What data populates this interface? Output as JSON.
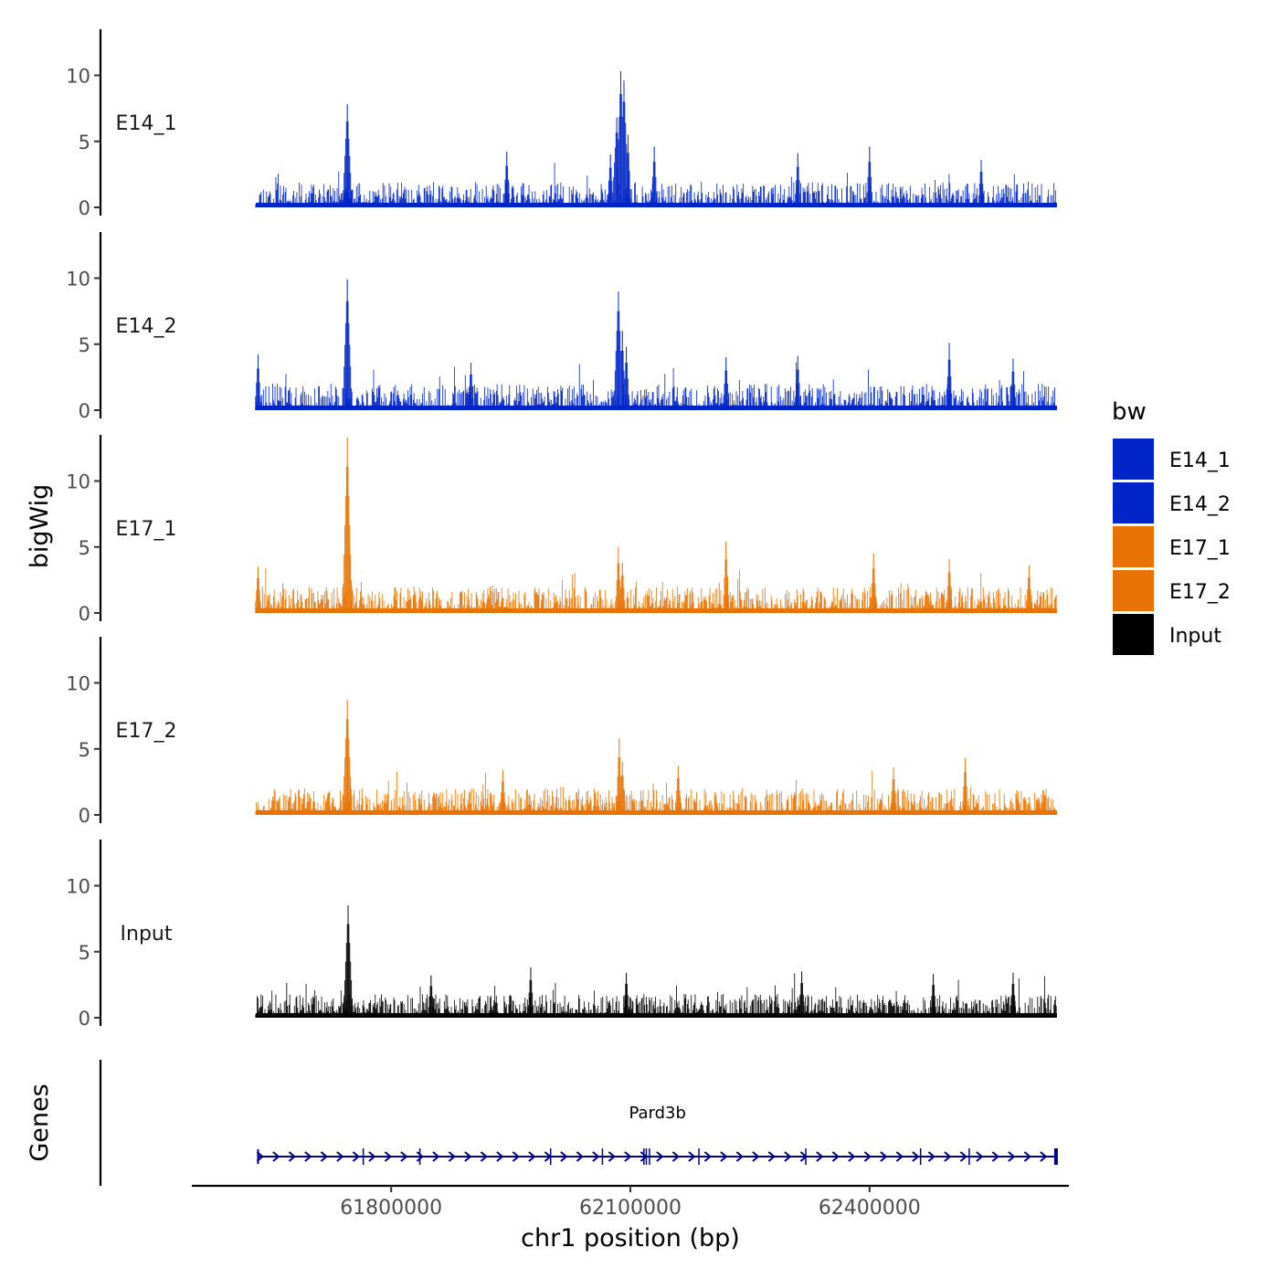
{
  "chart_data": {
    "type": "area",
    "title": "",
    "xlabel": "chr1 position (bp)",
    "ylabel": "bigWig",
    "genes_label": "Genes",
    "xlim": [
      61550000,
      62650000
    ],
    "x_data_range": [
      61630000,
      62635000
    ],
    "x_ticks": [
      61800000,
      62100000,
      62400000
    ],
    "x_tick_labels": [
      "61800000",
      "62100000",
      "62400000"
    ],
    "ylim": [
      0,
      14
    ],
    "y_ticks": [
      0,
      5,
      10
    ],
    "y_tick_labels": [
      "0",
      "5",
      "10"
    ],
    "legend": {
      "title": "bw",
      "position": "right",
      "entries": [
        {
          "label": "E14_1",
          "color": "#0024C8"
        },
        {
          "label": "E14_2",
          "color": "#0024C8"
        },
        {
          "label": "E17_1",
          "color": "#E87304"
        },
        {
          "label": "E17_2",
          "color": "#E87304"
        },
        {
          "label": "Input",
          "color": "#000000"
        }
      ]
    },
    "tracks": [
      {
        "name": "E14_1",
        "color": "#0024C8",
        "base_max": 1.9,
        "seed": 11,
        "peaks": [
          {
            "x": 61745000,
            "y": 7.8
          },
          {
            "x": 61945000,
            "y": 4.2
          },
          {
            "x": 62075000,
            "y": 4.0
          },
          {
            "x": 62083000,
            "y": 6.8
          },
          {
            "x": 62088000,
            "y": 10.3
          },
          {
            "x": 62092000,
            "y": 9.6
          },
          {
            "x": 62097000,
            "y": 5.5
          },
          {
            "x": 62130000,
            "y": 4.6
          },
          {
            "x": 62310000,
            "y": 4.1
          },
          {
            "x": 62400000,
            "y": 4.6
          },
          {
            "x": 62540000,
            "y": 3.6
          }
        ]
      },
      {
        "name": "E14_2",
        "color": "#0024C8",
        "base_max": 2.0,
        "seed": 23,
        "peaks": [
          {
            "x": 61633000,
            "y": 4.2
          },
          {
            "x": 61745000,
            "y": 9.9
          },
          {
            "x": 61900000,
            "y": 3.6
          },
          {
            "x": 62085000,
            "y": 9.0
          },
          {
            "x": 62090000,
            "y": 6.0
          },
          {
            "x": 62095000,
            "y": 4.8
          },
          {
            "x": 62220000,
            "y": 4.0
          },
          {
            "x": 62310000,
            "y": 4.1
          },
          {
            "x": 62500000,
            "y": 5.1
          },
          {
            "x": 62580000,
            "y": 3.9
          }
        ]
      },
      {
        "name": "E17_1",
        "color": "#E87304",
        "base_max": 2.0,
        "seed": 37,
        "peaks": [
          {
            "x": 61633000,
            "y": 3.5
          },
          {
            "x": 61745000,
            "y": 13.3
          },
          {
            "x": 61748000,
            "y": 5.0
          },
          {
            "x": 62085000,
            "y": 5.0
          },
          {
            "x": 62090000,
            "y": 3.8
          },
          {
            "x": 62220000,
            "y": 5.4
          },
          {
            "x": 62405000,
            "y": 4.5
          },
          {
            "x": 62500000,
            "y": 4.1
          },
          {
            "x": 62600000,
            "y": 3.6
          }
        ]
      },
      {
        "name": "E17_2",
        "color": "#E87304",
        "base_max": 2.0,
        "seed": 53,
        "peaks": [
          {
            "x": 61745000,
            "y": 8.7
          },
          {
            "x": 61745500,
            "y": 4.5
          },
          {
            "x": 61940000,
            "y": 3.4
          },
          {
            "x": 62086000,
            "y": 5.8
          },
          {
            "x": 62090000,
            "y": 4.0
          },
          {
            "x": 62160000,
            "y": 3.7
          },
          {
            "x": 62430000,
            "y": 3.6
          },
          {
            "x": 62520000,
            "y": 4.3
          }
        ]
      },
      {
        "name": "Input",
        "color": "#000000",
        "base_max": 1.8,
        "seed": 71,
        "peaks": [
          {
            "x": 61746000,
            "y": 8.5
          },
          {
            "x": 61850000,
            "y": 3.2
          },
          {
            "x": 61975000,
            "y": 3.8
          },
          {
            "x": 62095000,
            "y": 3.4
          },
          {
            "x": 62315000,
            "y": 3.5
          },
          {
            "x": 62480000,
            "y": 3.3
          },
          {
            "x": 62580000,
            "y": 3.4
          }
        ]
      }
    ],
    "genes": [
      {
        "name": "Pard3b",
        "start": 61633000,
        "end": 62635000,
        "strand": "+",
        "color": "#00008B",
        "exons": [
          61765000,
          61836000,
          62000000,
          62065000,
          62117000,
          62120000,
          62124000,
          62186000,
          62320000,
          62464000,
          62525000
        ]
      }
    ]
  }
}
